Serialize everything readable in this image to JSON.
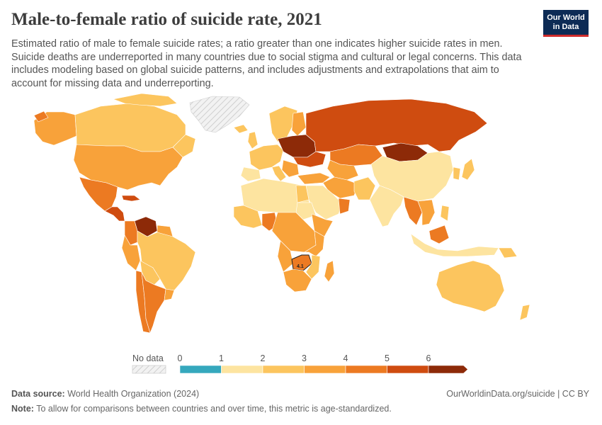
{
  "header": {
    "title": "Male-to-female ratio of suicide rate, 2021",
    "subtitle": "Estimated ratio of male to female suicide rates; a ratio greater than one indicates higher suicide rates in men. Suicide deaths are underreported in many countries due to social stigma and cultural or legal concerns. This data includes modeling based on global suicide patterns, and includes adjustments and extrapolations that aim to account for missing data and underreporting.",
    "logo_line1": "Our World",
    "logo_line2": "in Data"
  },
  "map": {
    "highlight_label": "4.1"
  },
  "legend": {
    "no_data_label": "No data",
    "ticks": [
      "0",
      "1",
      "2",
      "3",
      "4",
      "5",
      "6"
    ],
    "bins": [
      {
        "from": 0,
        "to": 1,
        "color": "#35a8bd"
      },
      {
        "from": 1,
        "to": 2,
        "color": "#fde4a0"
      },
      {
        "from": 2,
        "to": 3,
        "color": "#fcc55e"
      },
      {
        "from": 3,
        "to": 4,
        "color": "#f8a23a"
      },
      {
        "from": 4,
        "to": 5,
        "color": "#ec7a22"
      },
      {
        "from": 5,
        "to": 6,
        "color": "#cf4c10"
      },
      {
        "from": 6,
        "to": 7,
        "color": "#8d2a08"
      }
    ]
  },
  "footer": {
    "source_label": "Data source:",
    "source_text": "World Health Organization (2024)",
    "note_label": "Note:",
    "note_text": "To allow for comparisons between countries and over time, this metric is age-standardized.",
    "url": "OurWorldinData.org/suicide | CC BY"
  },
  "chart_data": {
    "type": "choropleth",
    "title": "Male-to-female ratio of suicide rate, 2021",
    "scale": [
      0,
      1,
      2,
      3,
      4,
      5,
      6
    ],
    "highlighted_region": {
      "label": "4.1",
      "value": 4.1
    },
    "regions": [
      {
        "name": "North America (Canada)",
        "value": 2.5
      },
      {
        "name": "United States",
        "value": 3.6
      },
      {
        "name": "Alaska",
        "value": 3.6
      },
      {
        "name": "Greenland",
        "value": null
      },
      {
        "name": "Mexico / Central America",
        "value": 4.5
      },
      {
        "name": "Venezuela",
        "value": 6.2
      },
      {
        "name": "Colombia",
        "value": 4.3
      },
      {
        "name": "Peru",
        "value": 3.2
      },
      {
        "name": "Brazil",
        "value": 2.5
      },
      {
        "name": "Argentina",
        "value": 4.3
      },
      {
        "name": "Chile",
        "value": 4.3
      },
      {
        "name": "Western Europe",
        "value": 2.5
      },
      {
        "name": "Eastern Europe",
        "value": 5.5
      },
      {
        "name": "Russia",
        "value": 5.5
      },
      {
        "name": "Mongolia",
        "value": 6.3
      },
      {
        "name": "Kazakhstan",
        "value": 4.3
      },
      {
        "name": "China",
        "value": 1.6
      },
      {
        "name": "India",
        "value": 1.4
      },
      {
        "name": "Middle East",
        "value": 2.2
      },
      {
        "name": "North Africa",
        "value": 2.0
      },
      {
        "name": "West Africa",
        "value": 3.0
      },
      {
        "name": "Central Africa",
        "value": 3.6
      },
      {
        "name": "Southern Africa",
        "value": 4.0
      },
      {
        "name": "Madagascar",
        "value": 3.5
      },
      {
        "name": "Southeast Asia",
        "value": 3.4
      },
      {
        "name": "Indonesia",
        "value": 1.8
      },
      {
        "name": "Australia",
        "value": 2.8
      },
      {
        "name": "Japan",
        "value": 2.5
      }
    ]
  }
}
